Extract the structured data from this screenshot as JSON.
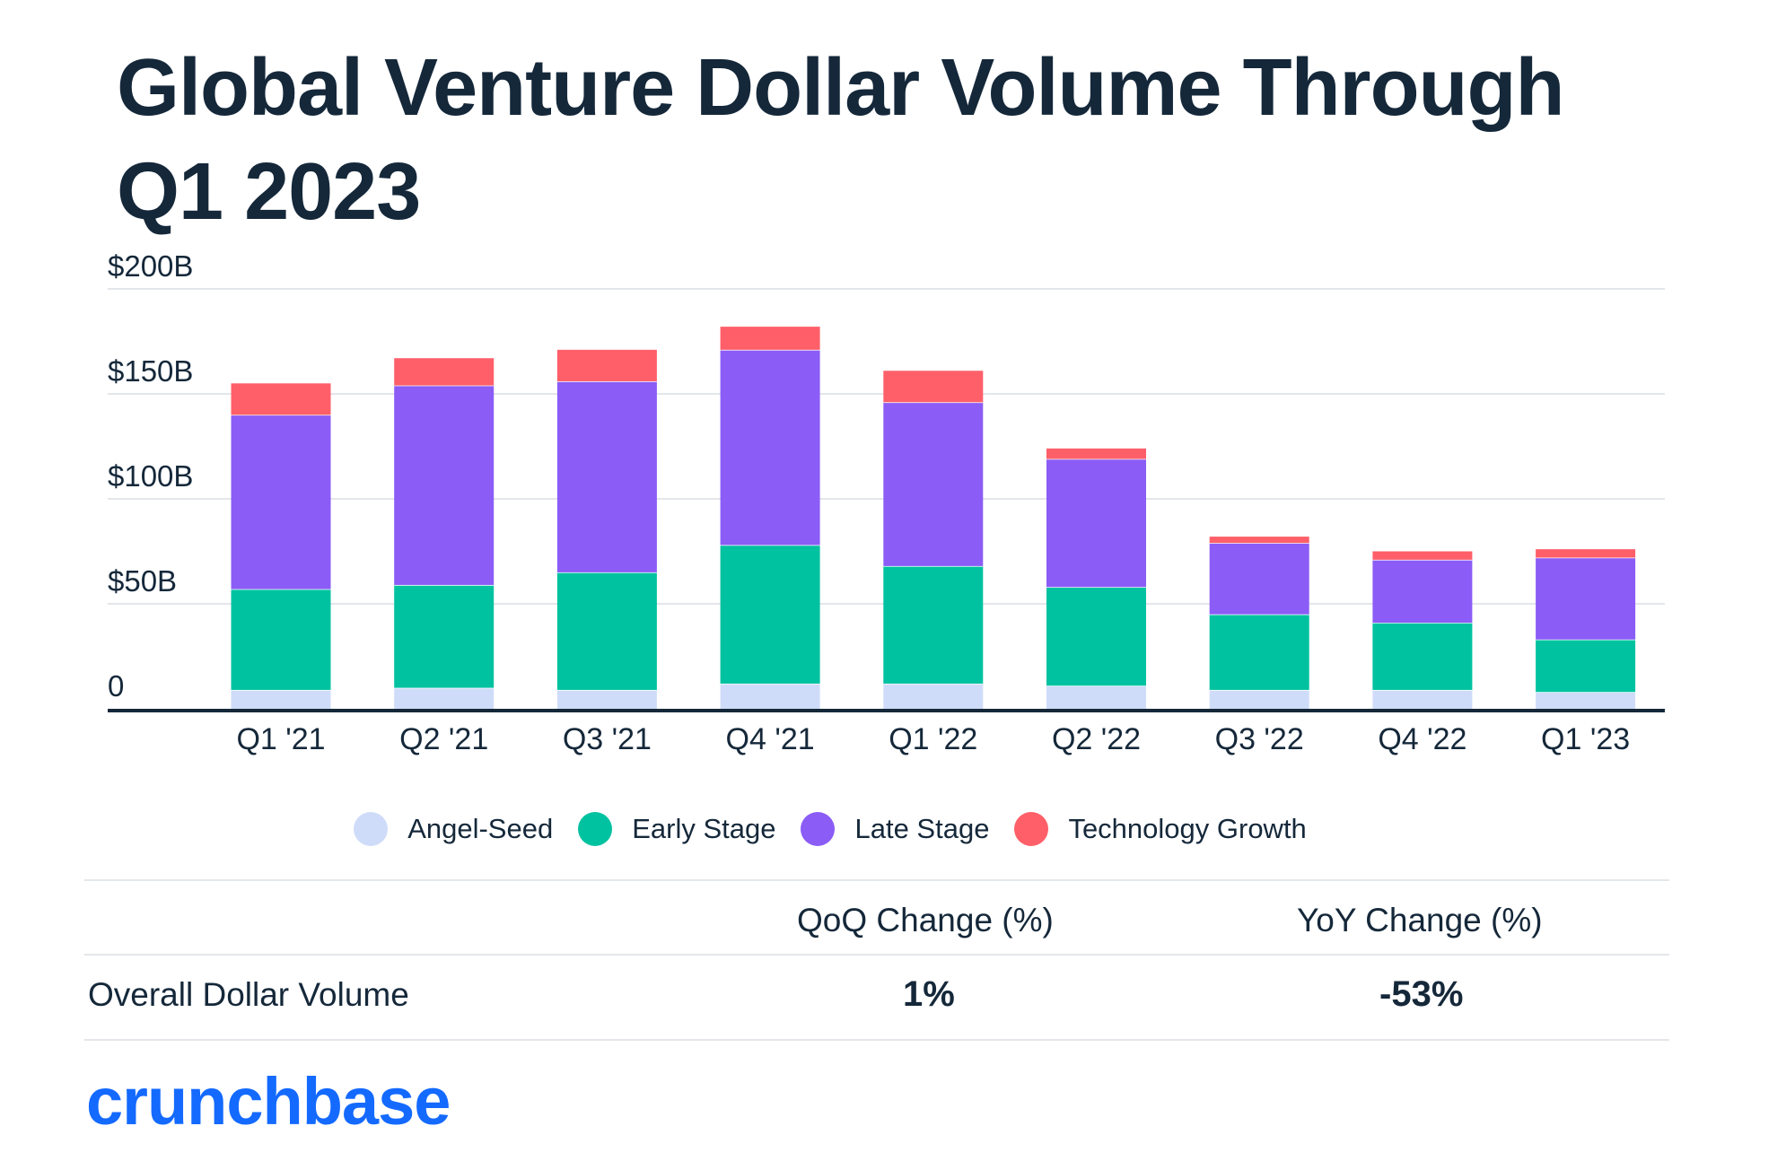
{
  "title": "Global Venture Dollar Volume Through Q1 2023",
  "chart_data": {
    "type": "bar",
    "stacked": true,
    "title": "Global Venture Dollar Volume Through Q1 2023",
    "categories": [
      "Q1 '21",
      "Q2 '21",
      "Q3 '21",
      "Q4 '21",
      "Q1 '22",
      "Q2 '22",
      "Q3 '22",
      "Q4 '22",
      "Q1 '23"
    ],
    "series": [
      {
        "name": "Angel-Seed",
        "color": "#cfdcf9",
        "values": [
          9,
          10,
          9,
          12,
          12,
          11,
          9,
          9,
          8
        ]
      },
      {
        "name": "Early Stage",
        "color": "#00c2a0",
        "values": [
          48,
          49,
          56,
          66,
          56,
          47,
          36,
          32,
          25
        ]
      },
      {
        "name": "Late Stage",
        "color": "#8b5cf6",
        "values": [
          83,
          95,
          91,
          93,
          78,
          61,
          34,
          30,
          39
        ]
      },
      {
        "name": "Technology Growth",
        "color": "#ff5f69",
        "values": [
          15,
          13,
          15,
          11,
          15,
          5,
          3,
          4,
          4
        ]
      }
    ],
    "ylim": [
      0,
      200
    ],
    "yticks": [
      {
        "value": 0,
        "label": "0"
      },
      {
        "value": 50,
        "label": "$50B"
      },
      {
        "value": 100,
        "label": "$100B"
      },
      {
        "value": 150,
        "label": "$150B"
      },
      {
        "value": 200,
        "label": "$200B"
      }
    ],
    "grid": true,
    "legend_position": "bottom"
  },
  "legend": [
    {
      "label": "Angel-Seed",
      "color": "#cfdcf9"
    },
    {
      "label": "Early Stage",
      "color": "#00c2a0"
    },
    {
      "label": "Late Stage",
      "color": "#8b5cf6"
    },
    {
      "label": "Technology Growth",
      "color": "#ff5f69"
    }
  ],
  "table": {
    "col_qoq": "QoQ Change (%)",
    "col_yoy": "YoY Change (%)",
    "row_label": "Overall Dollar Volume",
    "qoq_value": "1%",
    "yoy_value": "-53%"
  },
  "logo": "crunchbase"
}
